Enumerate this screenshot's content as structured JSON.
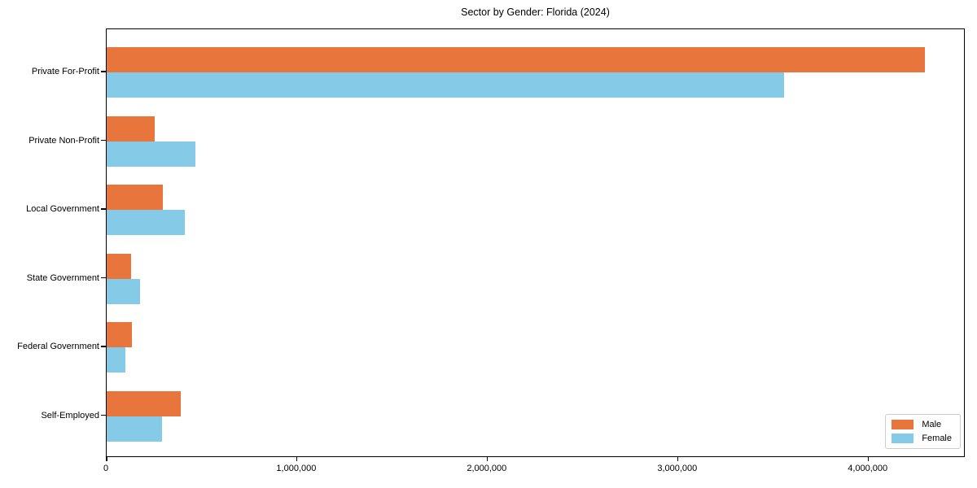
{
  "chart_data": {
    "type": "bar",
    "orientation": "horizontal",
    "title": "Sector by Gender: Florida (2024)",
    "categories": [
      "Private For-Profit",
      "Private Non-Profit",
      "Local Government",
      "State Government",
      "Federal Government",
      "Self-Employed"
    ],
    "series": [
      {
        "name": "Male",
        "color": "#e8763c",
        "values": [
          4295000,
          252000,
          295000,
          128000,
          132000,
          389000
        ]
      },
      {
        "name": "Female",
        "color": "#85cbe8",
        "values": [
          3555000,
          465000,
          410000,
          175000,
          98000,
          291000
        ]
      }
    ],
    "xlim": [
      0,
      4510000
    ],
    "x_ticks": [
      0,
      1000000,
      2000000,
      3000000,
      4000000
    ],
    "x_tick_labels": [
      "0",
      "1,000,000",
      "2,000,000",
      "3,000,000",
      "4,000,000"
    ],
    "legend_position": "lower right",
    "grid": false,
    "axis_color": "#000000"
  }
}
